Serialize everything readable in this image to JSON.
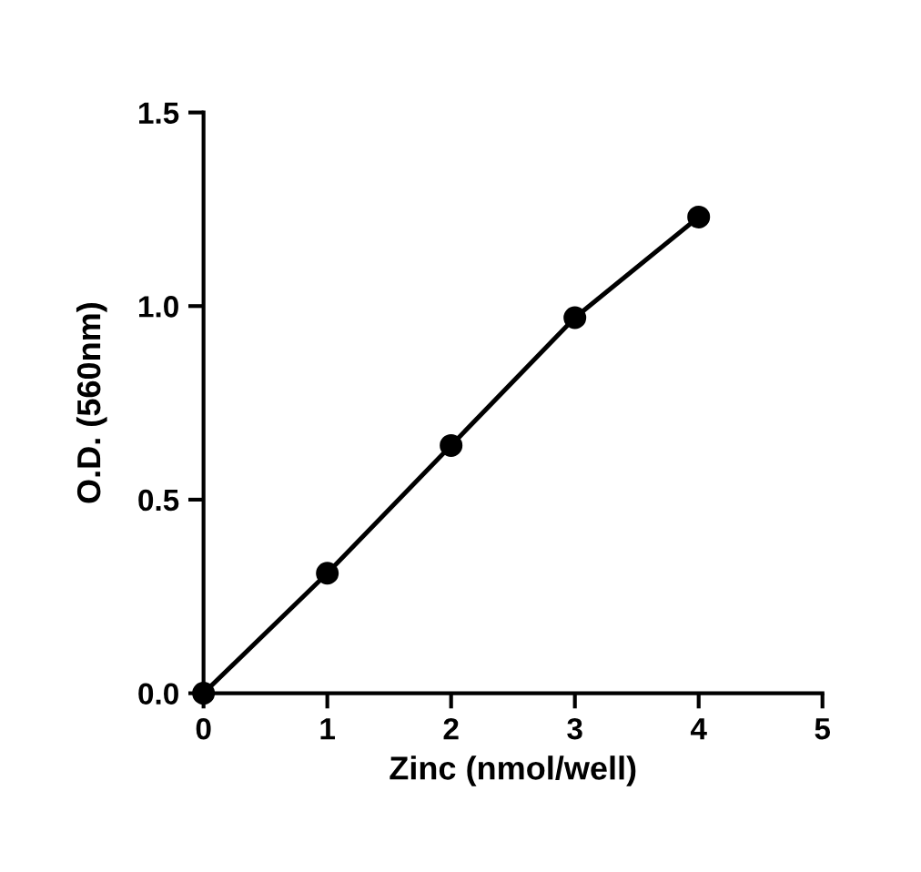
{
  "chart_data": {
    "type": "line",
    "xlabel": "Zinc (nmol/well)",
    "ylabel": "O.D. (560nm)",
    "x": [
      0,
      1,
      2,
      3,
      4
    ],
    "series": [
      {
        "color": "#000000",
        "values": [
          0,
          0.31,
          0.64,
          0.97,
          1.23
        ]
      }
    ],
    "xlim": [
      0,
      5
    ],
    "xticks": [
      0,
      1,
      2,
      3,
      4,
      5
    ],
    "ylim": [
      0,
      1.5
    ],
    "yticks": [
      {
        "value": 0,
        "label": "0.0"
      },
      0.5,
      {
        "value": 1,
        "label": "1.0"
      },
      1.5
    ],
    "marker": "circle",
    "line_style": "solid",
    "grid": false,
    "legend": false
  }
}
